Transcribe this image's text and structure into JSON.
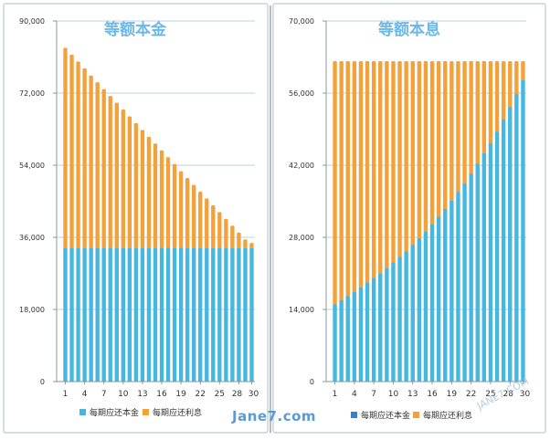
{
  "colors": {
    "principal": "#45b7e0",
    "interest": "#f3a23b",
    "legend_principal_left": "#45b7e0",
    "legend_principal_right": "#3a7fc8",
    "legend_interest": "#f3a23b",
    "title": "#6cb8e6",
    "grid": "#b9d3ea",
    "panel_border": "#c8d3dc"
  },
  "watermark": "Jane7.com",
  "watermark_small": "JANE7.COM",
  "chart_data": [
    {
      "type": "bar",
      "stacked": true,
      "title": "等额本金",
      "ylim": [
        0,
        90000
      ],
      "yticks": [
        "0",
        "18,000",
        "36,000",
        "54,000",
        "72,000",
        "90,000"
      ],
      "ytick_values": [
        0,
        18000,
        36000,
        54000,
        72000,
        90000
      ],
      "categories": [
        1,
        2,
        3,
        4,
        5,
        6,
        7,
        8,
        9,
        10,
        11,
        12,
        13,
        14,
        15,
        16,
        17,
        18,
        19,
        20,
        21,
        22,
        23,
        24,
        25,
        26,
        27,
        28,
        29,
        30
      ],
      "xtick_labels": [
        "1",
        "4",
        "7",
        "10",
        "13",
        "16",
        "19",
        "22",
        "25",
        "28",
        "30"
      ],
      "xtick_values": [
        1,
        4,
        7,
        10,
        13,
        16,
        19,
        22,
        25,
        28,
        30
      ],
      "grid": true,
      "legend_position": "bottom",
      "series": [
        {
          "name": "每期应还本金",
          "values": [
            33300,
            33300,
            33300,
            33300,
            33300,
            33300,
            33300,
            33300,
            33300,
            33300,
            33300,
            33300,
            33300,
            33300,
            33300,
            33300,
            33300,
            33300,
            33300,
            33300,
            33300,
            33300,
            33300,
            33300,
            33300,
            33300,
            33300,
            33300,
            33300,
            33300
          ]
        },
        {
          "name": "每期应还利息",
          "values": [
            50000,
            48300,
            46600,
            44900,
            43100,
            41400,
            39700,
            38000,
            36300,
            34600,
            32900,
            31200,
            29500,
            27800,
            26100,
            24400,
            22700,
            21000,
            19200,
            17500,
            15800,
            14100,
            12400,
            10700,
            9000,
            7300,
            5600,
            3900,
            2200,
            1300
          ]
        }
      ]
    },
    {
      "type": "bar",
      "stacked": true,
      "title": "等额本息",
      "ylim": [
        0,
        70000
      ],
      "yticks": [
        "0",
        "14,000",
        "28,000",
        "42,000",
        "56,000",
        "70,000"
      ],
      "ytick_values": [
        0,
        14000,
        28000,
        42000,
        56000,
        70000
      ],
      "categories": [
        1,
        2,
        3,
        4,
        5,
        6,
        7,
        8,
        9,
        10,
        11,
        12,
        13,
        14,
        15,
        16,
        17,
        18,
        19,
        20,
        21,
        22,
        23,
        24,
        25,
        26,
        27,
        28,
        29,
        30
      ],
      "xtick_labels": [
        "1",
        "4",
        "7",
        "10",
        "13",
        "16",
        "19",
        "22",
        "25",
        "28",
        "30"
      ],
      "xtick_values": [
        1,
        4,
        7,
        10,
        13,
        16,
        19,
        22,
        25,
        28,
        30
      ],
      "grid": true,
      "legend_position": "bottom",
      "series": [
        {
          "name": "每期应还本金",
          "values": [
            15000,
            15800,
            16600,
            17400,
            18300,
            19200,
            20100,
            21000,
            22000,
            23100,
            24200,
            25300,
            26500,
            27800,
            29100,
            30500,
            32000,
            33500,
            35100,
            36800,
            38500,
            40300,
            42300,
            44300,
            46300,
            48500,
            50900,
            53300,
            55800,
            58500
          ]
        },
        {
          "name": "每期应还利息",
          "values": [
            47200,
            46400,
            45600,
            44800,
            43900,
            43000,
            42100,
            41200,
            40200,
            39100,
            38000,
            36900,
            35700,
            34400,
            33100,
            31700,
            30200,
            28700,
            27100,
            25400,
            23700,
            21900,
            19900,
            17900,
            15900,
            13700,
            11300,
            8900,
            6400,
            3700
          ]
        }
      ]
    }
  ]
}
